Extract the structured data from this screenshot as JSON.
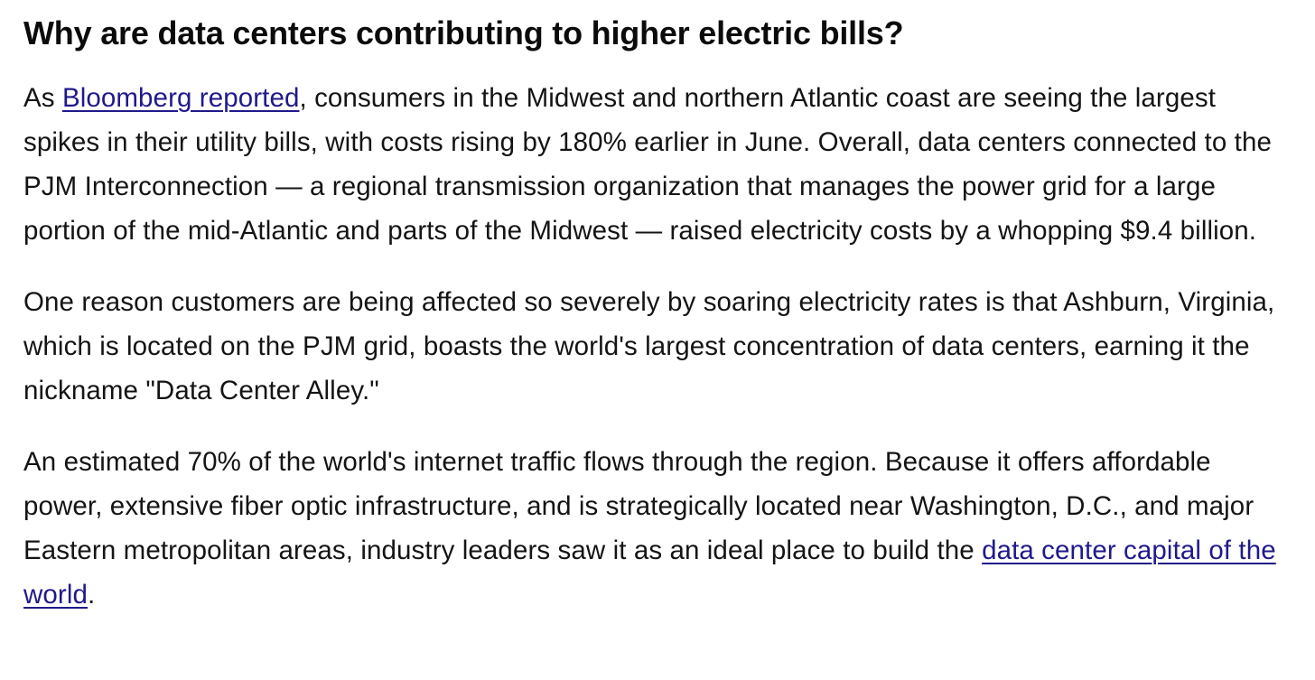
{
  "article": {
    "heading": "Why are data centers contributing to higher electric bills?",
    "p1": {
      "prefix": "As ",
      "link": "Bloomberg reported",
      "suffix": ", consumers in the Midwest and northern Atlantic coast are seeing the largest spikes in their utility bills, with costs rising by 180% earlier in June. Overall, data centers connected to the PJM Interconnection — a regional transmission organization that manages the power grid for a large portion of the mid-Atlantic and parts of the Midwest — raised electricity costs by a whopping $9.4 billion."
    },
    "p2": {
      "text": "One reason customers are being affected so severely by soaring electricity rates is that Ashburn, Virginia, which is located on the PJM grid, boasts the world's largest concentration of data centers, earning it the nickname \"Data Center Alley.\""
    },
    "p3": {
      "prefix": "An estimated 70% of the world's internet traffic flows through the region. Because it offers affordable power, extensive fiber optic infrastructure, and is strategically located near Washington, D.C., and major Eastern metropolitan areas, industry leaders saw it as an ideal place to build the ",
      "link": "data center capital of the world",
      "suffix": "."
    }
  },
  "colors": {
    "text": "#141414",
    "link": "#1f1a8a",
    "background": "#ffffff"
  }
}
